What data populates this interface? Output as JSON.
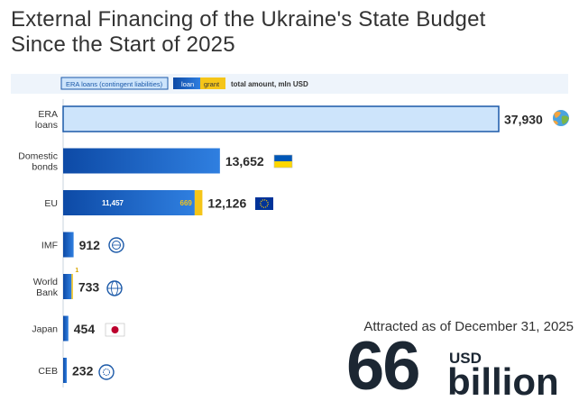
{
  "title_lines": [
    "External Financing of the Ukraine's State Budget",
    "Since the Start of 2025"
  ],
  "legend": {
    "era": "ERA loans (contingent liabilities)",
    "loan": "loan",
    "grant": "grant",
    "total": "total amount, mln USD"
  },
  "summary": {
    "note": "Attracted as of December 31, 2025",
    "number": "66",
    "unit": "USD",
    "scale": "billion"
  },
  "colors": {
    "era_fill": "#cde4fb",
    "era_stroke": "#1b59a8",
    "loan_start": "#0d4aa6",
    "loan_end": "#2f7fe0",
    "grant": "#f5c518",
    "text": "#2a2a2a",
    "legend_bg": "#eef4fb"
  },
  "chart_data": {
    "type": "bar",
    "orientation": "horizontal",
    "stacked": true,
    "units": "mln USD",
    "categories": [
      "ERA\nloans",
      "Domestic\nbonds",
      "EU",
      "IMF",
      "World\nBank",
      "Japan",
      "CEB"
    ],
    "series": [
      {
        "name": "ERA loans (contingent liabilities)",
        "values": [
          37930,
          0,
          0,
          0,
          0,
          0,
          0
        ]
      },
      {
        "name": "loan",
        "values": [
          0,
          13652,
          11457,
          912,
          732,
          454,
          232
        ]
      },
      {
        "name": "grant",
        "values": [
          0,
          0,
          669,
          0,
          1,
          0,
          0
        ]
      }
    ],
    "totals": [
      "37,930",
      "13,652",
      "12,126",
      "912",
      "733",
      "454",
      "232"
    ],
    "inner_labels": [
      {
        "category": "EU",
        "series": "loan",
        "text": "11,457"
      },
      {
        "category": "EU",
        "series": "grant",
        "text": "669"
      },
      {
        "category": "World\nBank",
        "series": "grant",
        "text": "1"
      }
    ],
    "icons": [
      "earth-icon",
      "ukraine-flag-icon",
      "eu-flag-icon",
      "imf-logo-icon",
      "world-bank-logo-icon",
      "japan-flag-icon",
      "ceb-logo-icon"
    ],
    "xlim": [
      0,
      37930
    ],
    "legend_position": "top"
  }
}
